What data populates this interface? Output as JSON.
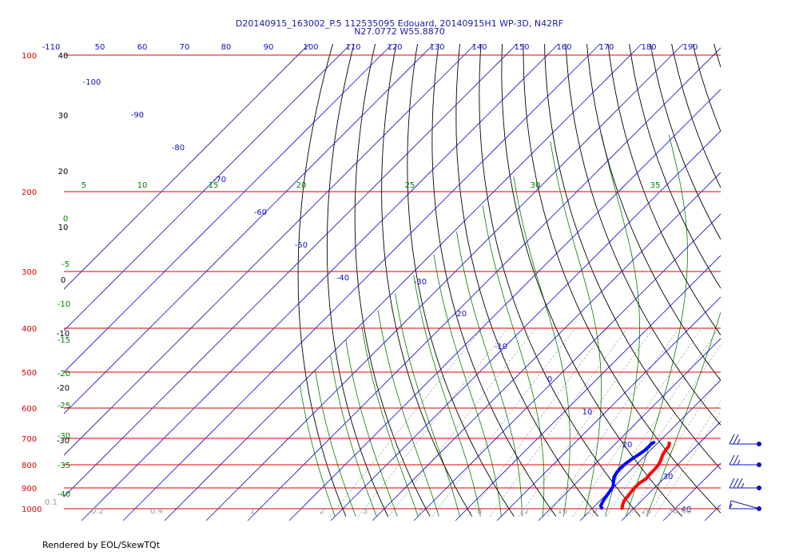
{
  "title_line1": "D20140915_163002_P.5 112535095 Edouard, 20140915H1 WP-3D, N42RF",
  "title_line2": "N27.0772 W55.8870",
  "footer": "Rendered by EOL/SkewTQt",
  "colors": {
    "isobar": "#e00000",
    "isotherm": "#1010c0",
    "dry_adiabat": "#000000",
    "moist_adiabat": "#008000",
    "mixing_ratio": "#999999",
    "temperature": "#ff0000",
    "dewpoint": "#0000ff",
    "wind_barb": "#1010c0"
  },
  "chart_data": {
    "type": "skew-t",
    "pressure_axis": {
      "labels": [
        "100",
        "200",
        "300",
        "400",
        "500",
        "600",
        "700",
        "800",
        "900",
        "1000"
      ],
      "values": [
        100,
        200,
        300,
        400,
        500,
        600,
        700,
        800,
        900,
        1000
      ]
    },
    "top_axis": {
      "labels": [
        "-110",
        "50",
        "60",
        "70",
        "80",
        "90",
        "100",
        "110",
        "120",
        "130",
        "140",
        "150",
        "160",
        "170",
        "180",
        "190"
      ]
    },
    "isotherm_labels": [
      "-100",
      "-90",
      "-80",
      "-70",
      "-60",
      "-50",
      "-40",
      "-30",
      "-20",
      "-10",
      "0",
      "10",
      "20",
      "30",
      "40"
    ],
    "bottom_axis": {
      "labels": [
        "0.1",
        "0.2",
        "0.4",
        "1",
        "2",
        "3",
        "5",
        "8",
        "12",
        "16",
        "20",
        "28",
        "36",
        "40"
      ]
    },
    "dry_adiabat_labels": [
      "40",
      "30",
      "20",
      "10",
      "0",
      "-10",
      "-20",
      "-30"
    ],
    "moist_adiabat_left_labels": [
      "0",
      "-5",
      "-10",
      "-15",
      "-20",
      "-25",
      "-30",
      "-35",
      "-40"
    ],
    "moist_adiabat_top_labels": [
      "5",
      "10",
      "15",
      "20",
      "25",
      "30",
      "35"
    ],
    "temperature_profile": [
      {
        "p": 712,
        "t": 22.4
      },
      {
        "p": 718,
        "t": 22.9
      },
      {
        "p": 728,
        "t": 23.4
      },
      {
        "p": 742,
        "t": 23.6
      },
      {
        "p": 760,
        "t": 24.0
      },
      {
        "p": 780,
        "t": 24.8
      },
      {
        "p": 800,
        "t": 25.4
      },
      {
        "p": 820,
        "t": 25.6
      },
      {
        "p": 840,
        "t": 25.6
      },
      {
        "p": 860,
        "t": 25.8
      },
      {
        "p": 880,
        "t": 25.2
      },
      {
        "p": 900,
        "t": 25.2
      },
      {
        "p": 920,
        "t": 25.4
      },
      {
        "p": 940,
        "t": 25.6
      },
      {
        "p": 960,
        "t": 25.8
      },
      {
        "p": 980,
        "t": 26.4
      },
      {
        "p": 995,
        "t": 27.0
      },
      {
        "p": 1004,
        "t": 27.6
      }
    ],
    "dewpoint_profile": [
      {
        "p": 712,
        "t": 19.0
      },
      {
        "p": 720,
        "t": 18.6
      },
      {
        "p": 730,
        "t": 18.7
      },
      {
        "p": 745,
        "t": 18.6
      },
      {
        "p": 760,
        "t": 18.2
      },
      {
        "p": 778,
        "t": 17.6
      },
      {
        "p": 795,
        "t": 17.2
      },
      {
        "p": 812,
        "t": 17.1
      },
      {
        "p": 830,
        "t": 17.2
      },
      {
        "p": 850,
        "t": 17.6
      },
      {
        "p": 870,
        "t": 18.5
      },
      {
        "p": 890,
        "t": 19.6
      },
      {
        "p": 910,
        "t": 20.0
      },
      {
        "p": 930,
        "t": 20.3
      },
      {
        "p": 950,
        "t": 20.6
      },
      {
        "p": 970,
        "t": 21.0
      },
      {
        "p": 985,
        "t": 21.4
      },
      {
        "p": 995,
        "t": 22.0
      },
      {
        "p": 1000,
        "t": 22.6
      }
    ],
    "wind_barbs": [
      {
        "p": 720,
        "speed_kt": 25
      },
      {
        "p": 800,
        "speed_kt": 25
      },
      {
        "p": 900,
        "speed_kt": 35
      },
      {
        "p": 1000,
        "speed_kt": 5
      }
    ]
  }
}
